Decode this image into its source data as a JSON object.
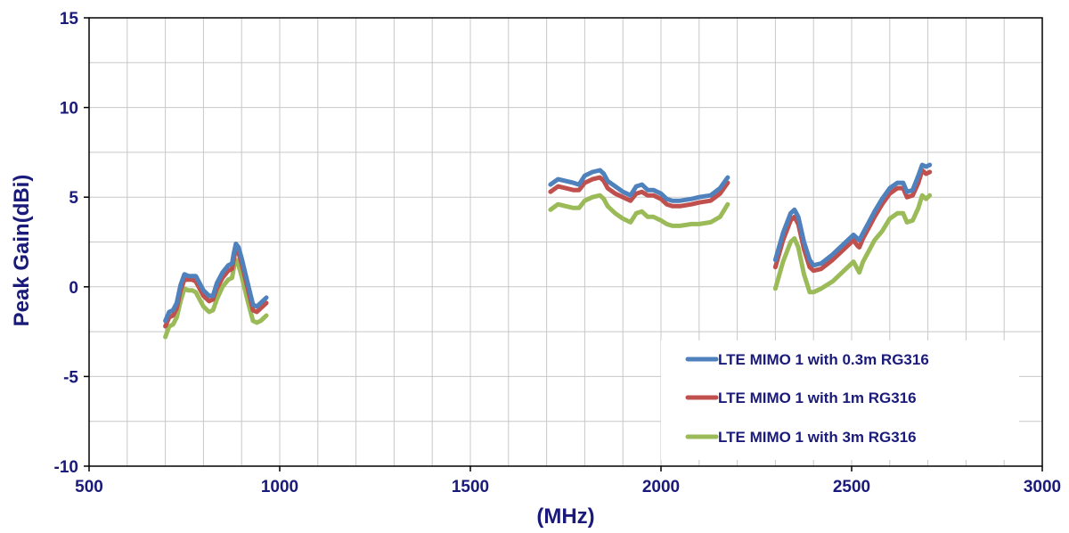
{
  "chart_data": {
    "type": "line",
    "title": "",
    "xlabel": "(MHz)",
    "ylabel": "Peak Gain(dBi)",
    "xlim": [
      500,
      3000
    ],
    "ylim": [
      -10,
      15
    ],
    "x_major_ticks": [
      500,
      1000,
      1500,
      2000,
      2500,
      3000
    ],
    "y_major_ticks": [
      -10,
      -5,
      0,
      5,
      10,
      15
    ],
    "grid": true,
    "legend_position": "bottom-right",
    "series": [
      {
        "name": "LTE MIMO 1 with 0.3m RG316",
        "color": "#4f81bd",
        "segments": [
          [
            [
              700,
              -1.9
            ],
            [
              710,
              -1.4
            ],
            [
              720,
              -1.3
            ],
            [
              730,
              -0.9
            ],
            [
              740,
              0.1
            ],
            [
              750,
              0.7
            ],
            [
              760,
              0.6
            ],
            [
              770,
              0.6
            ],
            [
              780,
              0.6
            ],
            [
              790,
              0.2
            ],
            [
              800,
              -0.2
            ],
            [
              815,
              -0.5
            ],
            [
              825,
              -0.5
            ],
            [
              835,
              0.2
            ],
            [
              850,
              0.8
            ],
            [
              865,
              1.2
            ],
            [
              875,
              1.3
            ],
            [
              880,
              1.9
            ],
            [
              885,
              2.4
            ],
            [
              892,
              2.2
            ],
            [
              900,
              1.6
            ],
            [
              915,
              0.3
            ],
            [
              930,
              -1.0
            ],
            [
              940,
              -1.1
            ],
            [
              950,
              -0.9
            ],
            [
              960,
              -0.7
            ],
            [
              965,
              -0.6
            ]
          ],
          [
            [
              1710,
              5.7
            ],
            [
              1730,
              6.0
            ],
            [
              1750,
              5.9
            ],
            [
              1770,
              5.8
            ],
            [
              1785,
              5.7
            ],
            [
              1800,
              6.2
            ],
            [
              1820,
              6.4
            ],
            [
              1840,
              6.5
            ],
            [
              1850,
              6.3
            ],
            [
              1860,
              5.9
            ],
            [
              1880,
              5.6
            ],
            [
              1900,
              5.3
            ],
            [
              1920,
              5.1
            ],
            [
              1935,
              5.6
            ],
            [
              1950,
              5.7
            ],
            [
              1965,
              5.4
            ],
            [
              1980,
              5.4
            ],
            [
              2000,
              5.2
            ],
            [
              2015,
              4.9
            ],
            [
              2030,
              4.8
            ],
            [
              2050,
              4.8
            ],
            [
              2080,
              4.9
            ],
            [
              2100,
              5.0
            ],
            [
              2130,
              5.1
            ],
            [
              2155,
              5.5
            ],
            [
              2175,
              6.1
            ]
          ],
          [
            [
              2300,
              1.5
            ],
            [
              2320,
              3.0
            ],
            [
              2340,
              4.1
            ],
            [
              2350,
              4.3
            ],
            [
              2360,
              3.9
            ],
            [
              2375,
              2.5
            ],
            [
              2390,
              1.5
            ],
            [
              2400,
              1.2
            ],
            [
              2420,
              1.3
            ],
            [
              2450,
              1.8
            ],
            [
              2480,
              2.4
            ],
            [
              2505,
              2.9
            ],
            [
              2515,
              2.7
            ],
            [
              2520,
              2.6
            ],
            [
              2530,
              3.0
            ],
            [
              2545,
              3.6
            ],
            [
              2560,
              4.2
            ],
            [
              2580,
              4.9
            ],
            [
              2600,
              5.5
            ],
            [
              2620,
              5.8
            ],
            [
              2635,
              5.8
            ],
            [
              2645,
              5.3
            ],
            [
              2660,
              5.4
            ],
            [
              2675,
              6.2
            ],
            [
              2685,
              6.8
            ],
            [
              2695,
              6.7
            ],
            [
              2705,
              6.8
            ]
          ]
        ]
      },
      {
        "name": "LTE MIMO 1 with 1m RG316",
        "color": "#c0504d",
        "segments": [
          [
            [
              700,
              -2.2
            ],
            [
              710,
              -1.7
            ],
            [
              720,
              -1.6
            ],
            [
              730,
              -1.2
            ],
            [
              740,
              -0.2
            ],
            [
              750,
              0.4
            ],
            [
              760,
              0.4
            ],
            [
              770,
              0.4
            ],
            [
              780,
              0.3
            ],
            [
              790,
              -0.1
            ],
            [
              800,
              -0.5
            ],
            [
              815,
              -0.8
            ],
            [
              825,
              -0.7
            ],
            [
              835,
              -0.1
            ],
            [
              850,
              0.5
            ],
            [
              865,
              0.9
            ],
            [
              875,
              1.0
            ],
            [
              880,
              1.6
            ],
            [
              885,
              2.1
            ],
            [
              892,
              1.9
            ],
            [
              900,
              1.3
            ],
            [
              915,
              0.0
            ],
            [
              930,
              -1.3
            ],
            [
              940,
              -1.4
            ],
            [
              950,
              -1.2
            ],
            [
              960,
              -1.0
            ],
            [
              965,
              -0.9
            ]
          ],
          [
            [
              1710,
              5.3
            ],
            [
              1730,
              5.6
            ],
            [
              1750,
              5.5
            ],
            [
              1770,
              5.4
            ],
            [
              1785,
              5.4
            ],
            [
              1800,
              5.8
            ],
            [
              1820,
              6.0
            ],
            [
              1840,
              6.1
            ],
            [
              1850,
              5.9
            ],
            [
              1860,
              5.5
            ],
            [
              1880,
              5.2
            ],
            [
              1900,
              5.0
            ],
            [
              1920,
              4.8
            ],
            [
              1935,
              5.2
            ],
            [
              1950,
              5.3
            ],
            [
              1965,
              5.1
            ],
            [
              1980,
              5.1
            ],
            [
              2000,
              4.9
            ],
            [
              2015,
              4.6
            ],
            [
              2030,
              4.5
            ],
            [
              2050,
              4.5
            ],
            [
              2080,
              4.6
            ],
            [
              2100,
              4.7
            ],
            [
              2130,
              4.8
            ],
            [
              2155,
              5.2
            ],
            [
              2175,
              5.8
            ]
          ],
          [
            [
              2300,
              1.1
            ],
            [
              2320,
              2.6
            ],
            [
              2340,
              3.7
            ],
            [
              2350,
              3.9
            ],
            [
              2360,
              3.5
            ],
            [
              2375,
              2.1
            ],
            [
              2390,
              1.1
            ],
            [
              2400,
              0.9
            ],
            [
              2420,
              1.0
            ],
            [
              2450,
              1.5
            ],
            [
              2480,
              2.1
            ],
            [
              2505,
              2.6
            ],
            [
              2515,
              2.3
            ],
            [
              2520,
              2.2
            ],
            [
              2530,
              2.7
            ],
            [
              2545,
              3.3
            ],
            [
              2560,
              3.9
            ],
            [
              2580,
              4.6
            ],
            [
              2600,
              5.2
            ],
            [
              2620,
              5.5
            ],
            [
              2635,
              5.5
            ],
            [
              2645,
              5.0
            ],
            [
              2660,
              5.1
            ],
            [
              2675,
              5.8
            ],
            [
              2685,
              6.5
            ],
            [
              2695,
              6.3
            ],
            [
              2705,
              6.4
            ]
          ]
        ]
      },
      {
        "name": "LTE MIMO 1 with 3m RG316",
        "color": "#9bbb59",
        "segments": [
          [
            [
              700,
              -2.8
            ],
            [
              710,
              -2.2
            ],
            [
              720,
              -2.1
            ],
            [
              730,
              -1.7
            ],
            [
              740,
              -0.8
            ],
            [
              750,
              -0.1
            ],
            [
              760,
              -0.2
            ],
            [
              770,
              -0.2
            ],
            [
              780,
              -0.3
            ],
            [
              790,
              -0.7
            ],
            [
              800,
              -1.1
            ],
            [
              815,
              -1.4
            ],
            [
              825,
              -1.3
            ],
            [
              835,
              -0.7
            ],
            [
              850,
              0.0
            ],
            [
              865,
              0.4
            ],
            [
              875,
              0.5
            ],
            [
              880,
              1.1
            ],
            [
              885,
              1.5
            ],
            [
              892,
              1.2
            ],
            [
              900,
              0.6
            ],
            [
              915,
              -0.7
            ],
            [
              930,
              -1.9
            ],
            [
              940,
              -2.0
            ],
            [
              950,
              -1.9
            ],
            [
              960,
              -1.7
            ],
            [
              965,
              -1.6
            ]
          ],
          [
            [
              1710,
              4.3
            ],
            [
              1730,
              4.6
            ],
            [
              1750,
              4.5
            ],
            [
              1770,
              4.4
            ],
            [
              1785,
              4.4
            ],
            [
              1800,
              4.8
            ],
            [
              1820,
              5.0
            ],
            [
              1840,
              5.1
            ],
            [
              1850,
              4.9
            ],
            [
              1860,
              4.5
            ],
            [
              1880,
              4.1
            ],
            [
              1900,
              3.8
            ],
            [
              1920,
              3.6
            ],
            [
              1935,
              4.1
            ],
            [
              1950,
              4.2
            ],
            [
              1965,
              3.9
            ],
            [
              1980,
              3.9
            ],
            [
              2000,
              3.7
            ],
            [
              2015,
              3.5
            ],
            [
              2030,
              3.4
            ],
            [
              2050,
              3.4
            ],
            [
              2080,
              3.5
            ],
            [
              2100,
              3.5
            ],
            [
              2130,
              3.6
            ],
            [
              2155,
              3.9
            ],
            [
              2175,
              4.6
            ]
          ],
          [
            [
              2300,
              -0.1
            ],
            [
              2320,
              1.4
            ],
            [
              2340,
              2.5
            ],
            [
              2350,
              2.7
            ],
            [
              2360,
              2.2
            ],
            [
              2375,
              0.7
            ],
            [
              2390,
              -0.3
            ],
            [
              2400,
              -0.3
            ],
            [
              2420,
              -0.1
            ],
            [
              2450,
              0.3
            ],
            [
              2480,
              0.9
            ],
            [
              2505,
              1.4
            ],
            [
              2515,
              1.0
            ],
            [
              2520,
              0.8
            ],
            [
              2530,
              1.4
            ],
            [
              2545,
              2.0
            ],
            [
              2560,
              2.6
            ],
            [
              2580,
              3.1
            ],
            [
              2600,
              3.8
            ],
            [
              2620,
              4.1
            ],
            [
              2635,
              4.1
            ],
            [
              2645,
              3.6
            ],
            [
              2660,
              3.7
            ],
            [
              2675,
              4.4
            ],
            [
              2685,
              5.1
            ],
            [
              2695,
              4.9
            ],
            [
              2705,
              5.1
            ]
          ]
        ]
      }
    ]
  }
}
